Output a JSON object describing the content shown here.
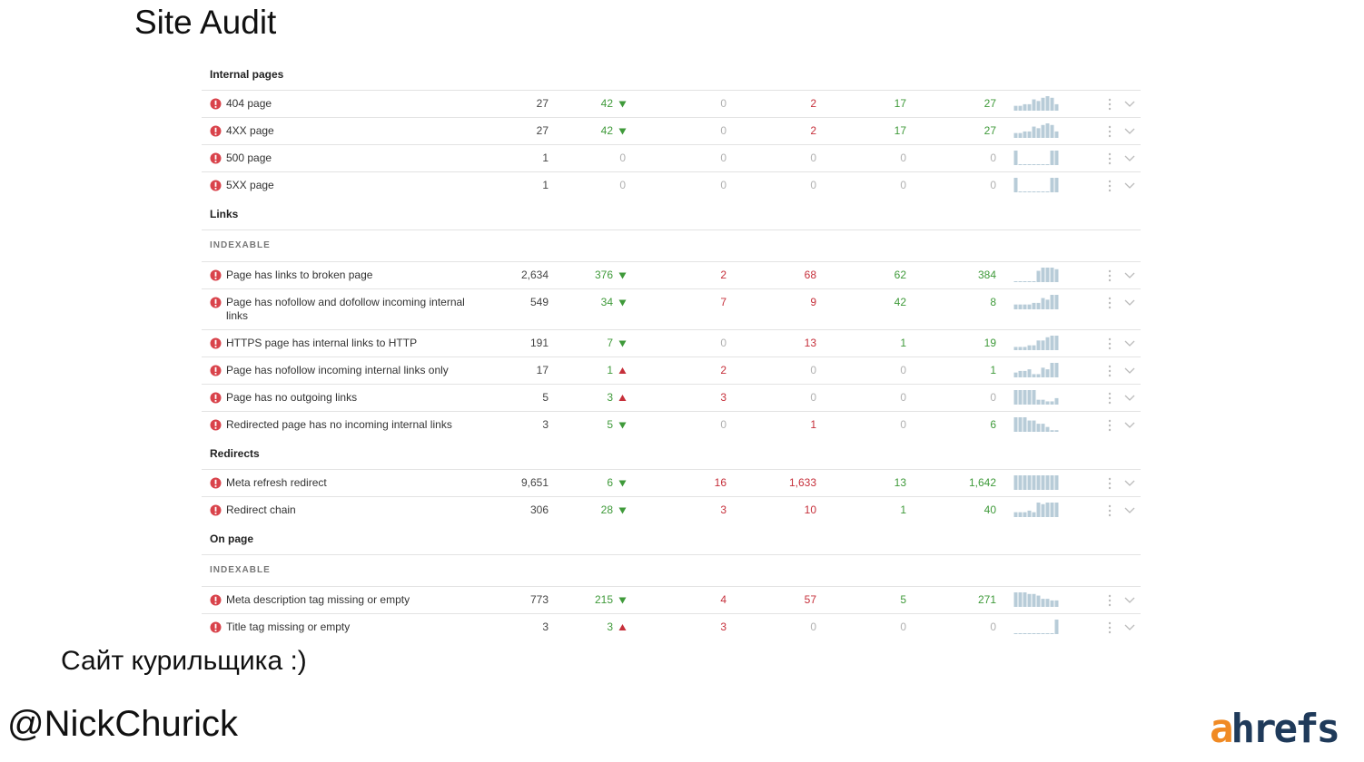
{
  "title": "Site Audit",
  "column_colors": [
    "#444444",
    "#3f9a3a",
    "#c62f3a",
    "#c62f3a",
    "#3f9a3a",
    "#3f9a3a"
  ],
  "zero_color": "#b0b0b0",
  "spark_color": "#b8ccd8",
  "table": {
    "rows": [
      {
        "section": "Internal pages"
      },
      {
        "label": "404 page",
        "values": [
          "27",
          "42",
          "0",
          "2",
          "17",
          "27"
        ],
        "trend": "down",
        "spark": [
          3,
          3,
          4,
          4,
          7,
          6,
          8,
          9,
          8,
          4
        ]
      },
      {
        "label": "4XX page",
        "values": [
          "27",
          "42",
          "0",
          "2",
          "17",
          "27"
        ],
        "trend": "down",
        "spark": [
          3,
          3,
          4,
          4,
          7,
          6,
          8,
          9,
          8,
          4
        ]
      },
      {
        "label": "500 page",
        "values": [
          "1",
          "0",
          "0",
          "0",
          "0",
          "0"
        ],
        "spark": [
          9,
          0,
          0,
          0,
          0,
          0,
          0,
          0,
          9,
          9
        ]
      },
      {
        "label": "5XX page",
        "values": [
          "1",
          "0",
          "0",
          "0",
          "0",
          "0"
        ],
        "spark": [
          9,
          0,
          0,
          0,
          0,
          0,
          0,
          0,
          9,
          9
        ]
      },
      {
        "section": "Links"
      },
      {
        "subsection": "INDEXABLE"
      },
      {
        "label": "Page has links to broken page",
        "values": [
          "2,634",
          "376",
          "2",
          "68",
          "62",
          "384"
        ],
        "trend": "down",
        "spark": [
          0,
          0,
          0,
          0,
          0,
          7,
          9,
          9,
          9,
          8
        ]
      },
      {
        "label": "Page has nofollow and dofollow incoming internal links",
        "values": [
          "549",
          "34",
          "7",
          "9",
          "42",
          "8"
        ],
        "trend": "down",
        "spark": [
          3,
          3,
          3,
          3,
          4,
          4,
          7,
          6,
          9,
          9
        ]
      },
      {
        "label": "HTTPS page has internal links to HTTP",
        "values": [
          "191",
          "7",
          "0",
          "13",
          "1",
          "19"
        ],
        "trend": "down",
        "spark": [
          2,
          2,
          2,
          3,
          3,
          6,
          6,
          8,
          9,
          9
        ]
      },
      {
        "label": "Page has nofollow incoming internal links only",
        "values": [
          "17",
          "1",
          "2",
          "0",
          "0",
          "1"
        ],
        "trend": "up",
        "spark": [
          3,
          4,
          4,
          5,
          2,
          2,
          6,
          5,
          9,
          9
        ]
      },
      {
        "label": "Page has no outgoing links",
        "values": [
          "5",
          "3",
          "3",
          "0",
          "0",
          "0"
        ],
        "trend": "up",
        "spark": [
          9,
          9,
          9,
          9,
          9,
          3,
          3,
          2,
          2,
          4
        ]
      },
      {
        "label": "Redirected page has no incoming internal links",
        "values": [
          "3",
          "5",
          "0",
          "1",
          "0",
          "6"
        ],
        "trend": "down",
        "spark": [
          9,
          9,
          9,
          7,
          7,
          5,
          5,
          3,
          1,
          1
        ]
      },
      {
        "section": "Redirects"
      },
      {
        "label": "Meta refresh redirect",
        "values": [
          "9,651",
          "6",
          "16",
          "1,633",
          "13",
          "1,642"
        ],
        "trend": "down",
        "spark": [
          9,
          9,
          9,
          9,
          9,
          9,
          9,
          9,
          9,
          9
        ]
      },
      {
        "label": "Redirect chain",
        "values": [
          "306",
          "28",
          "3",
          "10",
          "1",
          "40"
        ],
        "trend": "down",
        "spark": [
          3,
          3,
          3,
          4,
          3,
          9,
          8,
          9,
          9,
          9
        ]
      },
      {
        "section": "On page"
      },
      {
        "subsection": "INDEXABLE"
      },
      {
        "label": "Meta description tag missing or empty",
        "values": [
          "773",
          "215",
          "4",
          "57",
          "5",
          "271"
        ],
        "trend": "down",
        "spark": [
          9,
          9,
          9,
          8,
          8,
          7,
          5,
          5,
          4,
          4
        ]
      },
      {
        "label": "Title tag missing or empty",
        "values": [
          "3",
          "3",
          "3",
          "0",
          "0",
          "0"
        ],
        "trend": "up",
        "spark": [
          0,
          0,
          0,
          0,
          0,
          0,
          0,
          0,
          0,
          9
        ]
      }
    ]
  },
  "caption": "Сайт курильщика :)",
  "author": "@NickChurick",
  "logo": {
    "accent": "a",
    "rest": "hrefs"
  }
}
